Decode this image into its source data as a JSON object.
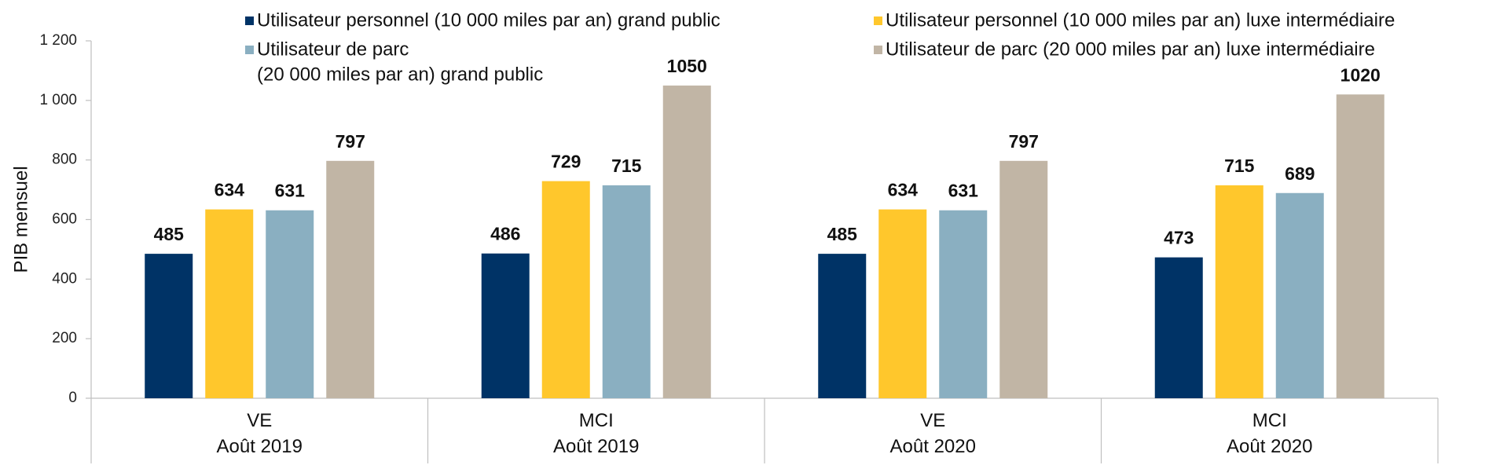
{
  "chart_data": {
    "type": "bar",
    "ylabel": "PIB mensuel",
    "xlabel": "",
    "ylim": [
      0,
      1200
    ],
    "yticks": [
      "0",
      "200",
      "400",
      "600",
      "800",
      "1 000",
      "1 200"
    ],
    "ytick_values": [
      0,
      200,
      400,
      600,
      800,
      1000,
      1200
    ],
    "categories": [
      [
        "VE",
        "Août 2019"
      ],
      [
        "MCI",
        "Août 2019"
      ],
      [
        "VE",
        "Août 2020"
      ],
      [
        "MCI",
        "Août 2020"
      ]
    ],
    "series": [
      {
        "name": [
          "Utilisateur personnel (10 000 miles par an) grand public"
        ],
        "color": "#003366",
        "values": [
          485,
          486,
          485,
          473
        ]
      },
      {
        "name": [
          "Utilisateur personnel (10 000 miles par an) luxe intermédiaire"
        ],
        "color": "#FFC72C",
        "values": [
          634,
          729,
          634,
          715
        ]
      },
      {
        "name": [
          "Utilisateur de parc",
          "(20 000 miles par an) grand public"
        ],
        "color": "#8AAFC1",
        "values": [
          631,
          715,
          631,
          689
        ]
      },
      {
        "name": [
          "Utilisateur de parc (20 000 miles par an) luxe intermédiaire"
        ],
        "color": "#C1B5A5",
        "values": [
          797,
          1050,
          797,
          1020
        ]
      }
    ],
    "legend_position": "top",
    "grid": false
  }
}
